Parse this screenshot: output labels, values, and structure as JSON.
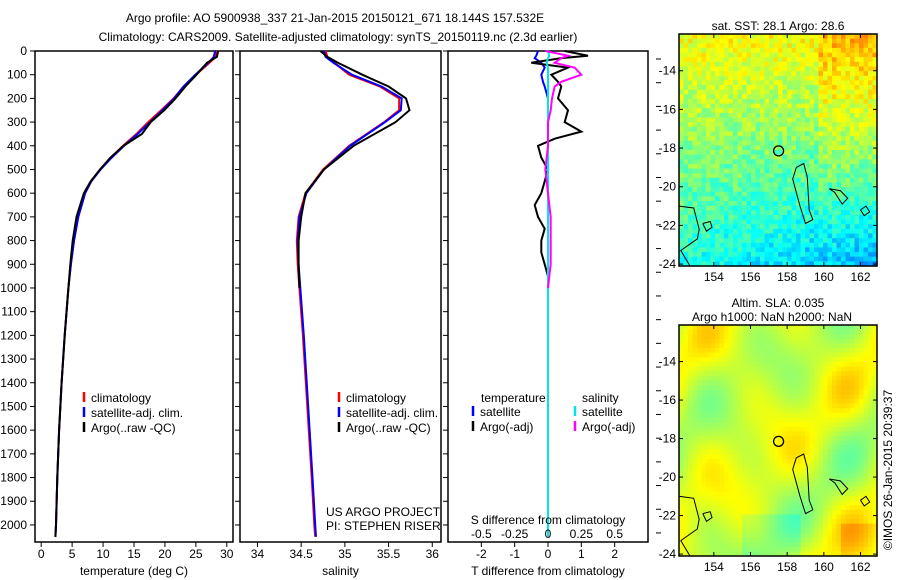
{
  "title": {
    "line1": "Argo profile: AO 5900938_337 21-Jan-2015 20150121_671 18.144S 157.532E",
    "line2": "Climatology: CARS2009. Satellite-adjusted climatology: synTS_20150119.nc (2.3d earlier)"
  },
  "colors": {
    "clim": "#ff0000",
    "sat": "#0000ff",
    "argo": "#000000",
    "sal_sat": "#00e5e5",
    "sal_argo": "#ff00ff"
  },
  "chart_data": [
    {
      "type": "line",
      "name": "temperature",
      "xlabel": "temperature (deg C)",
      "xlim": [
        -1,
        31
      ],
      "ylim": [
        2072,
        0
      ],
      "xticks": [
        0,
        5,
        10,
        15,
        20,
        25,
        30
      ],
      "yticks": [
        0,
        100,
        200,
        300,
        400,
        500,
        600,
        700,
        800,
        900,
        1000,
        1100,
        1200,
        1300,
        1400,
        1500,
        1600,
        1700,
        1800,
        1900,
        2000
      ],
      "legend": [
        "climatology",
        "satellite-adj. clim.",
        "Argo(..raw -QC)"
      ],
      "depth": [
        0,
        25,
        50,
        100,
        150,
        200,
        250,
        300,
        350,
        400,
        450,
        500,
        550,
        600,
        700,
        800,
        900,
        1000,
        1200,
        1400,
        1600,
        1800,
        2000,
        2050
      ],
      "series": [
        {
          "name": "climatology",
          "values": [
            28.4,
            28.2,
            27.2,
            25.0,
            23.0,
            21.4,
            19.4,
            17.3,
            15.4,
            13.2,
            11.3,
            9.5,
            8.1,
            7.1,
            6.0,
            5.3,
            4.8,
            4.4,
            3.8,
            3.3,
            2.9,
            2.6,
            2.4,
            2.3
          ]
        },
        {
          "name": "satellite-adj. clim.",
          "values": [
            28.1,
            27.9,
            27.0,
            24.9,
            23.0,
            21.5,
            19.6,
            17.6,
            15.6,
            13.4,
            11.4,
            9.6,
            8.1,
            7.1,
            6.0,
            5.3,
            4.8,
            4.4,
            3.8,
            3.3,
            2.9,
            2.6,
            2.4,
            2.3
          ]
        },
        {
          "name": "Argo(..raw -QC)",
          "values": [
            28.6,
            28.4,
            26.8,
            25.1,
            23.3,
            21.7,
            19.9,
            17.7,
            16.3,
            13.3,
            11.2,
            9.5,
            8.0,
            6.9,
            5.7,
            5.1,
            4.7,
            4.4,
            3.8,
            3.3,
            2.9,
            2.6,
            2.4,
            2.3
          ]
        }
      ]
    },
    {
      "type": "line",
      "name": "salinity",
      "xlabel": "salinity",
      "xlim": [
        33.8,
        36.1
      ],
      "ylim": [
        2072,
        0
      ],
      "xticks": [
        34,
        34.5,
        35,
        35.5,
        36
      ],
      "legend": [
        "climatology",
        "satellite-adj. clim.",
        "Argo(..raw -QC)"
      ],
      "annotation": [
        "US ARGO PROJECT",
        "PI: STEPHEN RISER"
      ],
      "depth": [
        0,
        25,
        50,
        100,
        150,
        200,
        250,
        300,
        400,
        500,
        600,
        700,
        800,
        900,
        1000,
        1200,
        1500,
        1800,
        2000,
        2050
      ],
      "series": [
        {
          "name": "climatology",
          "values": [
            34.78,
            34.8,
            34.88,
            35.05,
            35.4,
            35.62,
            35.62,
            35.45,
            35.05,
            34.75,
            34.55,
            34.47,
            34.45,
            34.46,
            34.48,
            34.52,
            34.57,
            34.62,
            34.65,
            34.66
          ]
        },
        {
          "name": "satellite-adj. clim.",
          "values": [
            34.76,
            34.78,
            34.87,
            35.08,
            35.42,
            35.65,
            35.64,
            35.46,
            35.06,
            34.76,
            34.56,
            34.48,
            34.46,
            34.47,
            34.49,
            34.53,
            34.58,
            34.63,
            34.66,
            34.67
          ]
        },
        {
          "name": "Argo(..raw -QC)",
          "values": [
            34.72,
            34.8,
            34.92,
            35.2,
            35.5,
            35.7,
            35.74,
            35.58,
            35.1,
            34.76,
            34.55,
            34.5,
            34.47,
            34.47,
            34.48,
            null,
            null,
            null,
            null,
            null
          ]
        }
      ]
    },
    {
      "type": "line",
      "name": "difference",
      "xlabel": "T difference from climatology",
      "x2label": "S difference from climatology",
      "xlim": [
        -3,
        3
      ],
      "ylim": [
        2072,
        0
      ],
      "xticks": [
        -2,
        -1,
        0,
        1,
        2
      ],
      "x2ticks": [
        -0.5,
        -0.25,
        0,
        0.25,
        0.5
      ],
      "x2ticklabels": [
        "-0.5",
        "-0.25",
        "0",
        "0.25",
        "0.5"
      ],
      "legend_headers": [
        "temperature",
        "salinity"
      ],
      "legend": [
        "satellite",
        "Argo(-adj)",
        "satellite",
        "Argo(-adj)"
      ],
      "depth": [
        0,
        20,
        30,
        50,
        70,
        100,
        130,
        150,
        200,
        250,
        300,
        340,
        370,
        400,
        450,
        500,
        550,
        600,
        650,
        700,
        750,
        800,
        850,
        900,
        950,
        1000,
        1500,
        2050
      ],
      "series": [
        {
          "name": "T satellite",
          "values": [
            -0.3,
            -0.35,
            -0.4,
            -0.2,
            -0.1,
            -0.2,
            -0.15,
            -0.1,
            0,
            0,
            0,
            0,
            0,
            0,
            0,
            0,
            0,
            0,
            0,
            0,
            0,
            0,
            0,
            0,
            0,
            0,
            0,
            0
          ]
        },
        {
          "name": "T Argo(-adj)",
          "values": [
            0.5,
            1.2,
            0.4,
            -0.5,
            0.6,
            0.1,
            0.3,
            0.4,
            0.3,
            0.6,
            0.5,
            1.0,
            0.2,
            -0.3,
            -0.2,
            0,
            -0.1,
            -0.2,
            -0.4,
            -0.3,
            -0.1,
            -0.2,
            -0.2,
            -0.1,
            0,
            0,
            null,
            null
          ]
        },
        {
          "name": "S satellite",
          "values": [
            0,
            0.01,
            0,
            -0.01,
            0,
            0,
            0,
            0,
            0,
            0,
            0,
            0,
            0,
            0,
            0,
            0,
            0,
            0,
            0,
            0,
            0,
            0,
            0,
            0,
            0,
            0,
            0,
            0
          ]
        },
        {
          "name": "S Argo(-adj)",
          "values": [
            -0.02,
            0.15,
            0.1,
            0.05,
            0.2,
            0.25,
            0.1,
            0.05,
            0.03,
            0.02,
            0,
            0,
            0,
            0,
            -0.01,
            -0.02,
            -0.01,
            0,
            0.01,
            0.02,
            0.02,
            0.02,
            0.02,
            0.02,
            0.01,
            0,
            null,
            null
          ]
        }
      ]
    },
    {
      "type": "heatmap",
      "name": "sst-map",
      "title": "sat. SST: 28.1  Argo: 28.6",
      "xlim": [
        152.1,
        162.9
      ],
      "ylim": [
        -24.1,
        -12.1
      ],
      "xticks": [
        154,
        156,
        158,
        160,
        162
      ],
      "yticks": [
        -14,
        -16,
        -18,
        -20,
        -22,
        -24
      ],
      "profile_location": [
        157.532,
        -18.144
      ]
    },
    {
      "type": "heatmap",
      "name": "sla-map",
      "title1": "Altim. SLA: 0.035",
      "title2": "Argo h1000: NaN h2000: NaN",
      "xlim": [
        152.1,
        162.9
      ],
      "ylim": [
        -24.1,
        -12.1
      ],
      "xticks": [
        154,
        156,
        158,
        160,
        162
      ],
      "yticks": [
        -14,
        -16,
        -18,
        -20,
        -22,
        -24
      ],
      "profile_location": [
        157.532,
        -18.144
      ]
    }
  ],
  "footer": "©IMOS 26-Jan-2015 20:39:37"
}
